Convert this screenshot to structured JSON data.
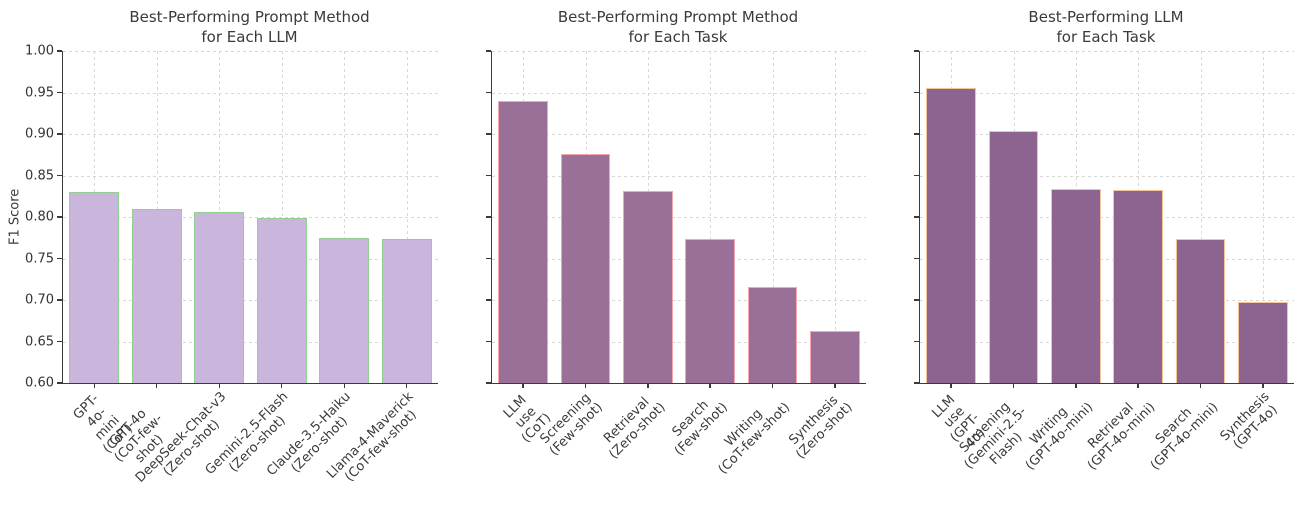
{
  "figure": {
    "background": "#ffffff",
    "text_color": "#3a3a3a",
    "grid_color": "#d8d8d8",
    "spine_color": "#3a3a3a"
  },
  "chart_data": [
    {
      "type": "bar",
      "title": "Best-Performing Prompt Method\nfor Each LLM",
      "xlabel": "",
      "ylabel": "F1 Score",
      "ylim": [
        0.6,
        1.0
      ],
      "yticks": [
        0.6,
        0.65,
        0.7,
        0.75,
        0.8,
        0.85,
        0.9,
        0.95,
        1.0
      ],
      "ytick_labels": [
        "0.60",
        "0.65",
        "0.70",
        "0.75",
        "0.80",
        "0.85",
        "0.90",
        "0.95",
        "1.00"
      ],
      "show_ytick_labels": true,
      "grid": true,
      "legend": "none",
      "categories": [
        "GPT-4o-mini\n(CoT)",
        "GPT-4o\n(CoT-few-shot)",
        "DeepSeek-Chat-v3\n(Zero-shot)",
        "Gemini-2.5-Flash\n(Zero-shot)",
        "Claude-3.5-Haiku\n(Zero-shot)",
        "Llama-4-Maverick\n(CoT-few-shot)"
      ],
      "values": [
        0.83,
        0.81,
        0.806,
        0.799,
        0.775,
        0.774
      ],
      "bar_color": "#cab6dc",
      "bar_edge_color": "#92d092"
    },
    {
      "type": "bar",
      "title": "Best-Performing Prompt Method\nfor Each Task",
      "xlabel": "",
      "ylabel": "",
      "ylim": [
        0.6,
        1.0
      ],
      "yticks": [
        0.6,
        0.65,
        0.7,
        0.75,
        0.8,
        0.85,
        0.9,
        0.95,
        1.0
      ],
      "ytick_labels": [
        "0.60",
        "0.65",
        "0.70",
        "0.75",
        "0.80",
        "0.85",
        "0.90",
        "0.95",
        "1.00"
      ],
      "show_ytick_labels": false,
      "grid": true,
      "legend": "none",
      "categories": [
        "LLM use\n(CoT)",
        "Screening\n(Few-shot)",
        "Retrieval\n(Zero-shot)",
        "Search\n(Few-shot)",
        "Writing\n(CoT-few-shot)",
        "Synthesis\n(Zero-shot)"
      ],
      "values": [
        0.94,
        0.876,
        0.831,
        0.774,
        0.716,
        0.663
      ],
      "bar_color": "#9a7098",
      "bar_edge_color": "#f3a7b1"
    },
    {
      "type": "bar",
      "title": "Best-Performing LLM\nfor Each Task",
      "xlabel": "",
      "ylabel": "",
      "ylim": [
        0.6,
        1.0
      ],
      "yticks": [
        0.6,
        0.65,
        0.7,
        0.75,
        0.8,
        0.85,
        0.9,
        0.95,
        1.0
      ],
      "ytick_labels": [
        "0.60",
        "0.65",
        "0.70",
        "0.75",
        "0.80",
        "0.85",
        "0.90",
        "0.95",
        "1.00"
      ],
      "show_ytick_labels": false,
      "grid": true,
      "legend": "none",
      "categories": [
        "LLM use\n(GPT-4o)",
        "Screening\n(Gemini-2.5-Flash)",
        "Writing\n(GPT-4o-mini)",
        "Retrieval\n(GPT-4o-mini)",
        "Search\n(GPT-4o-mini)",
        "Synthesis\n(GPT-4o)"
      ],
      "values": [
        0.956,
        0.904,
        0.834,
        0.833,
        0.774,
        0.697
      ],
      "bar_color": "#8d6390",
      "bar_edge_color": "#f6c39b"
    }
  ]
}
